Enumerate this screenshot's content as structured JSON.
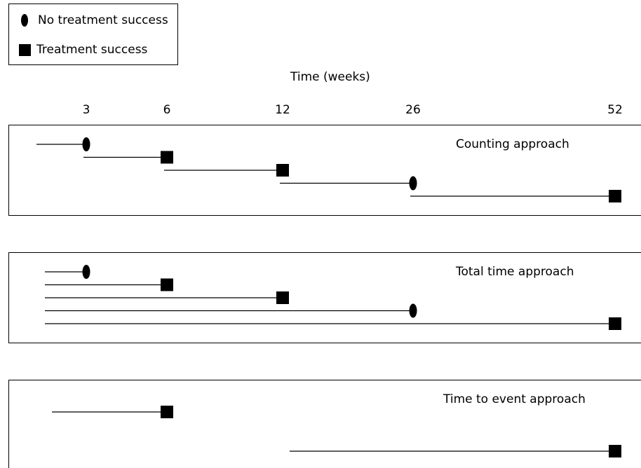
{
  "legend": {
    "no_success_label": "No treatment success",
    "success_label": "Treatment success"
  },
  "axis": {
    "title": "Time (weeks)",
    "ticks": [
      "3",
      "6",
      "12",
      "26",
      "52"
    ]
  },
  "panels": [
    {
      "title": "Counting approach",
      "intervals": [
        {
          "start": 0,
          "end": 3,
          "outcome": "no-success"
        },
        {
          "start": 3,
          "end": 6,
          "outcome": "success"
        },
        {
          "start": 6,
          "end": 12,
          "outcome": "success"
        },
        {
          "start": 12,
          "end": 26,
          "outcome": "no-success"
        },
        {
          "start": 26,
          "end": 52,
          "outcome": "success"
        }
      ]
    },
    {
      "title": "Total time approach",
      "intervals": [
        {
          "start": 0,
          "end": 3,
          "outcome": "no-success"
        },
        {
          "start": 0,
          "end": 6,
          "outcome": "success"
        },
        {
          "start": 0,
          "end": 12,
          "outcome": "success"
        },
        {
          "start": 0,
          "end": 26,
          "outcome": "no-success"
        },
        {
          "start": 0,
          "end": 52,
          "outcome": "success"
        }
      ]
    },
    {
      "title": "Time to event approach",
      "intervals": [
        {
          "start": 0,
          "end": 6,
          "outcome": "success"
        },
        {
          "start": 12,
          "end": 52,
          "outcome": "success"
        }
      ]
    }
  ],
  "colors": {
    "marker": "#000000",
    "line": "#000000"
  }
}
